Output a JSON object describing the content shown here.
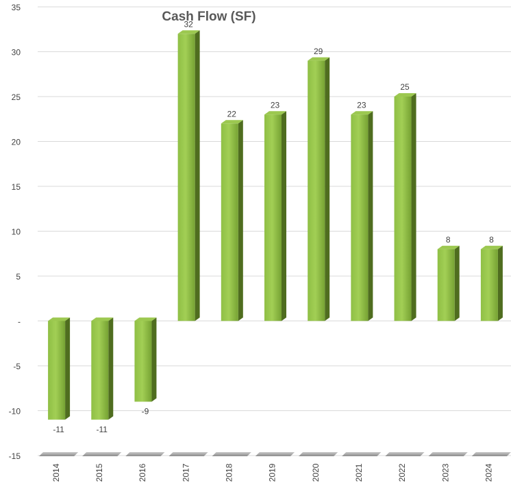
{
  "chart_data": {
    "type": "bar",
    "title": "Cash Flow (SF)",
    "categories": [
      "2014",
      "2015",
      "2016",
      "2017",
      "2018",
      "2019",
      "2020",
      "2021",
      "2022",
      "2023",
      "2024"
    ],
    "values": [
      -11,
      -11,
      -9,
      32,
      22,
      23,
      29,
      23,
      25,
      8,
      8
    ],
    "color": "#8cbd3f",
    "ylim": [
      -15,
      35
    ],
    "yticks": [
      -15,
      -10,
      -5,
      {
        "value": 0,
        "label": "-"
      },
      5,
      10,
      15,
      20,
      25,
      30,
      35
    ],
    "grid": true
  }
}
